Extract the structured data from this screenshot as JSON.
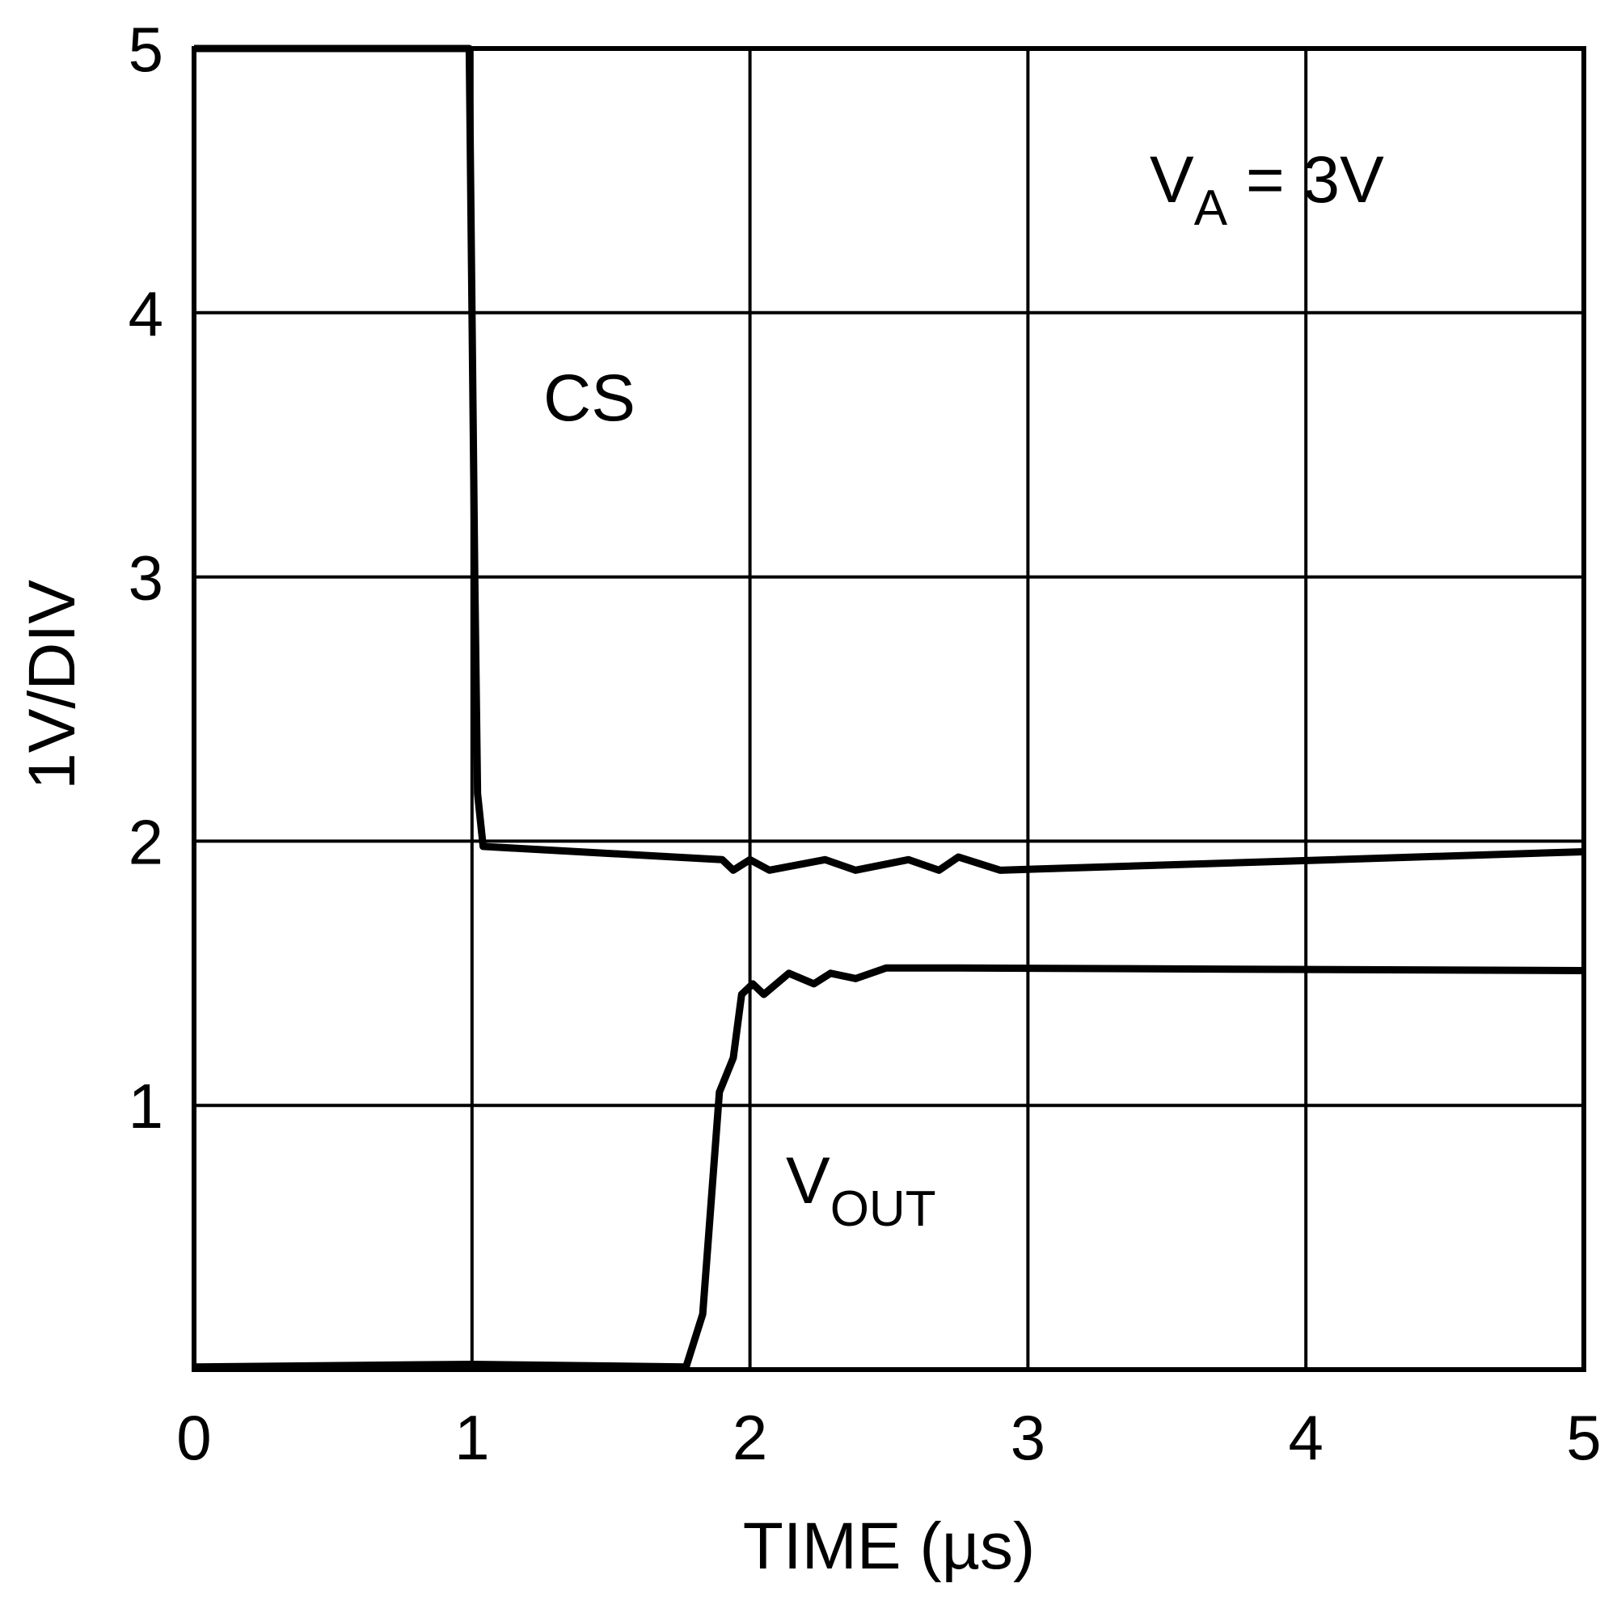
{
  "chart_data": {
    "type": "line",
    "xlabel": "TIME (µs)",
    "ylabel": "1V/DIV",
    "xlim": [
      0,
      5
    ],
    "xticks": [
      0,
      1,
      2,
      3,
      4,
      5
    ],
    "ylim": [
      0,
      5
    ],
    "yticks": [
      1,
      2,
      3,
      4,
      5
    ],
    "grid": true,
    "series": [
      {
        "color": "#000000",
        "x": [
          0,
          0.99,
          1.0,
          1.01,
          1.02,
          1.04,
          1.9,
          1.94,
          2.0,
          2.07,
          2.27,
          2.38,
          2.57,
          2.68,
          2.75,
          2.9,
          5
        ],
        "values": [
          5.0,
          5.0,
          4.0,
          3.0,
          2.18,
          1.98,
          1.93,
          1.89,
          1.93,
          1.89,
          1.93,
          1.89,
          1.93,
          1.89,
          1.94,
          1.89,
          1.96
        ]
      },
      {
        "color": "#000000",
        "x": [
          0,
          1,
          1.77,
          1.83,
          1.89,
          1.94,
          1.97,
          2.01,
          2.05,
          2.14,
          2.23,
          2.29,
          2.38,
          2.49,
          2.75,
          5
        ],
        "values": [
          0.01,
          0.02,
          0.01,
          0.21,
          1.05,
          1.18,
          1.42,
          1.46,
          1.42,
          1.5,
          1.46,
          1.5,
          1.48,
          1.52,
          1.52,
          1.51
        ]
      }
    ],
    "annotations": [
      {
        "text": "CS"
      },
      {
        "text": "V",
        "subscript": "A",
        "suffix": " = 3V"
      },
      {
        "text": "V",
        "subscript": "OUT"
      }
    ]
  }
}
